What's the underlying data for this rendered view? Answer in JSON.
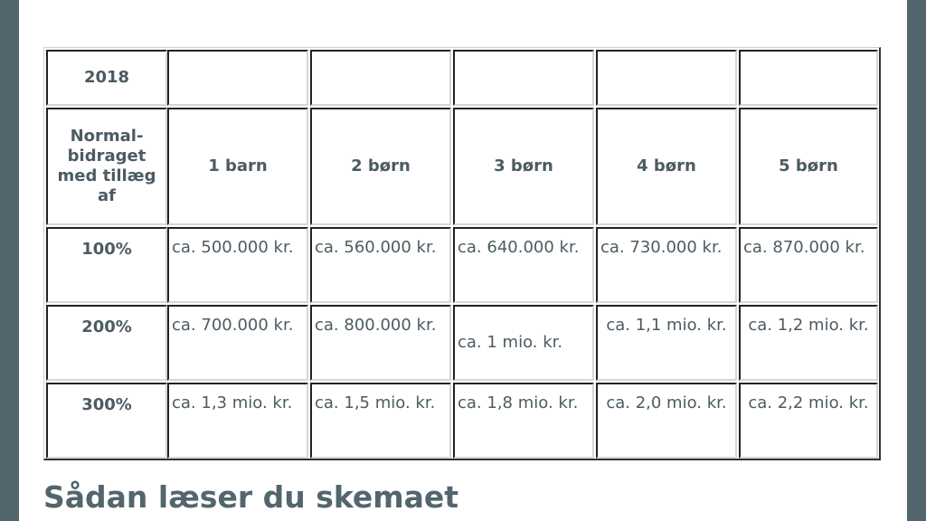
{
  "table": {
    "year": "2018",
    "row_header": "Normal-bidraget med tillæg af",
    "columns": [
      "1 barn",
      "2 børn",
      "3 børn",
      "4 børn",
      "5 børn"
    ],
    "rows": [
      {
        "label": "100%",
        "values": [
          "ca. 500.000 kr.",
          "ca. 560.000 kr.",
          "ca. 640.000 kr.",
          "ca. 730.000 kr.",
          "ca. 870.000 kr."
        ]
      },
      {
        "label": "200%",
        "values": [
          "ca. 700.000 kr.",
          "ca. 800.000 kr.",
          "ca. 1 mio. kr.",
          "ca. 1,1 mio. kr.",
          "ca. 1,2 mio. kr."
        ]
      },
      {
        "label": "300%",
        "values": [
          "ca. 1,3 mio. kr.",
          "ca. 1,5 mio. kr.",
          "ca. 1,8 mio. kr.",
          "ca. 2,0 mio. kr.",
          "ca. 2,2 mio. kr."
        ]
      }
    ]
  },
  "heading": "Sådan læser du skemaet",
  "colors": {
    "sidebar": "#53656d",
    "text": "#4c5b62"
  }
}
